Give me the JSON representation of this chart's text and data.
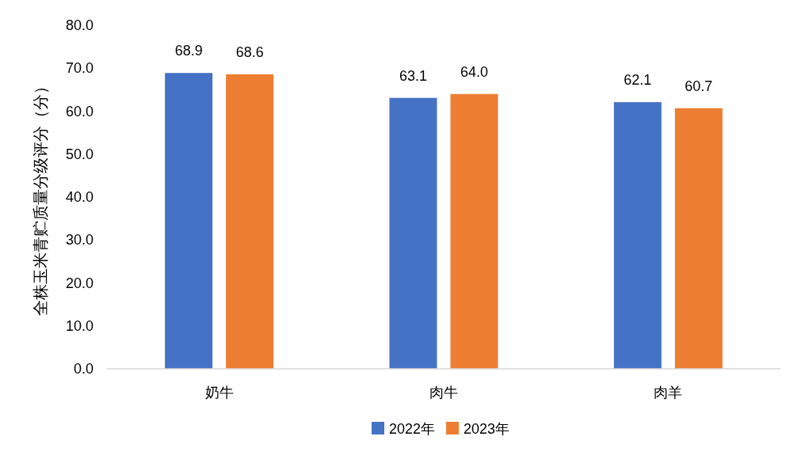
{
  "chart_data": {
    "type": "bar",
    "ylabel": "全株玉米青贮质量分级评分（分）",
    "categories": [
      "奶牛",
      "肉牛",
      "肉羊"
    ],
    "series": [
      {
        "name": "2022年",
        "color": "#4472c4",
        "values": [
          68.9,
          63.1,
          62.1
        ],
        "value_labels": [
          "68.9",
          "63.1",
          "62.1"
        ]
      },
      {
        "name": "2023年",
        "color": "#ed7d31",
        "values": [
          68.6,
          64.0,
          60.7
        ],
        "value_labels": [
          "68.6",
          "64.0",
          "60.7"
        ]
      }
    ],
    "ylim": [
      0,
      80
    ],
    "yticks": [
      {
        "value": 0,
        "label": "0.0"
      },
      {
        "value": 10,
        "label": "10.0"
      },
      {
        "value": 20,
        "label": "20.0"
      },
      {
        "value": 30,
        "label": "30.0"
      },
      {
        "value": 40,
        "label": "40.0"
      },
      {
        "value": 50,
        "label": "50.0"
      },
      {
        "value": 60,
        "label": "60.0"
      },
      {
        "value": 70,
        "label": "70.0"
      },
      {
        "value": 80,
        "label": "80.0"
      }
    ],
    "grid": false,
    "legend": "bottom"
  }
}
